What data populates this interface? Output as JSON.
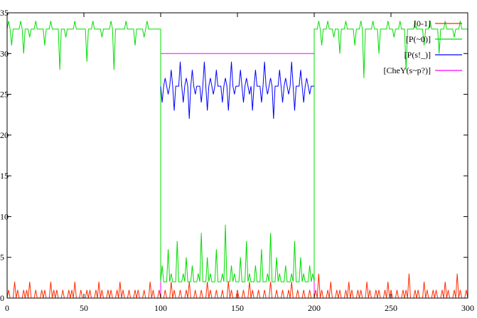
{
  "chart_data": {
    "type": "line",
    "xlim": [
      0,
      300
    ],
    "ylim": [
      0,
      35
    ],
    "x_ticks": [
      0,
      50,
      100,
      150,
      200,
      250,
      300
    ],
    "y_ticks": [
      0,
      5,
      10,
      15,
      20,
      25,
      30,
      35
    ],
    "grid": false,
    "legend_position": "top-right",
    "series": [
      {
        "name": "[0-1]",
        "color": "#ff2a00",
        "segments": [
          {
            "x0": 0,
            "x1": 100,
            "base": 0,
            "values": [
              1,
              0,
              2,
              1,
              0,
              1,
              1,
              2,
              0,
              1,
              0,
              1,
              1,
              0,
              2,
              1,
              1,
              0,
              1,
              0,
              1,
              1,
              2,
              0,
              1,
              0,
              1,
              1,
              0,
              1,
              2,
              1,
              0,
              1,
              1,
              0,
              1,
              2,
              1,
              0,
              1,
              0,
              1,
              1,
              0,
              1,
              0,
              2,
              1,
              0,
              1
            ]
          },
          {
            "x0": 100,
            "x1": 200,
            "base": 0,
            "values": [
              0,
              1,
              0,
              2,
              1,
              0,
              1,
              0,
              1,
              2,
              0,
              1,
              0,
              1,
              0,
              2,
              1,
              0,
              1,
              0,
              1,
              0,
              2,
              1,
              0,
              1,
              0,
              1,
              0,
              2,
              1,
              0,
              1,
              0,
              1,
              0,
              2,
              0,
              1,
              0,
              1,
              0,
              1,
              2,
              0,
              1,
              0,
              1,
              0,
              1,
              0
            ]
          },
          {
            "x0": 200,
            "x1": 300,
            "base": 0,
            "values": [
              1,
              3,
              1,
              0,
              1,
              2,
              0,
              1,
              1,
              0,
              1,
              2,
              1,
              0,
              1,
              1,
              0,
              2,
              1,
              0,
              1,
              1,
              0,
              1,
              2,
              1,
              0,
              1,
              0,
              1,
              1,
              3,
              0,
              1,
              1,
              0,
              2,
              1,
              0,
              1,
              1,
              0,
              1,
              2,
              1,
              0,
              1,
              3,
              1,
              0,
              1
            ]
          }
        ]
      },
      {
        "name": "[P(~0)]",
        "color": "#00dd00",
        "segments": [
          {
            "x0": 0,
            "x1": 100,
            "base": 33,
            "values": [
              34,
              31,
              33,
              33,
              34,
              30,
              33,
              32,
              33,
              34,
              33,
              33,
              31,
              33,
              34,
              33,
              33,
              28,
              33,
              32,
              33,
              33,
              34,
              33,
              33,
              33,
              29,
              33,
              34,
              33,
              33,
              32,
              33,
              33,
              34,
              28,
              33,
              33,
              33,
              34,
              33,
              33,
              31,
              33,
              33,
              32,
              34,
              33,
              33,
              33,
              33
            ]
          },
          {
            "x0": 100,
            "x1": 200,
            "base": 2,
            "values": [
              4,
              2,
              6,
              3,
              2,
              7,
              2,
              3,
              5,
              2,
              4,
              2,
              3,
              8,
              2,
              5,
              3,
              2,
              6,
              2,
              3,
              9,
              2,
              4,
              3,
              2,
              5,
              2,
              7,
              3,
              2,
              4,
              2,
              6,
              2,
              3,
              8,
              2,
              5,
              3,
              2,
              4,
              2,
              3,
              7,
              2,
              5,
              3,
              2,
              4,
              3
            ]
          },
          {
            "x0": 200,
            "x1": 300,
            "base": 33,
            "values": [
              33,
              34,
              31,
              33,
              34,
              33,
              32,
              33,
              30,
              33,
              34,
              33,
              33,
              31,
              33,
              34,
              27,
              33,
              33,
              34,
              33,
              30,
              33,
              33,
              34,
              33,
              32,
              33,
              34,
              33,
              28,
              33,
              33,
              34,
              33,
              33,
              31,
              33,
              34,
              33,
              33,
              30,
              33,
              34,
              33,
              33,
              32,
              33,
              34,
              33,
              33
            ]
          }
        ]
      },
      {
        "name": "[P(s!_)]",
        "color": "#0000ff",
        "segments": [
          {
            "x0": 100,
            "x1": 200,
            "base": 26,
            "values": [
              24,
              27,
              25,
              28,
              23,
              26,
              29,
              24,
              27,
              22,
              28,
              25,
              26,
              24,
              29,
              23,
              27,
              25,
              28,
              26,
              24,
              27,
              23,
              29,
              25,
              26,
              28,
              24,
              27,
              25,
              23,
              28,
              26,
              24,
              29,
              25,
              27,
              22,
              26,
              28,
              24,
              27,
              25,
              29,
              23,
              26,
              28,
              24,
              27,
              25,
              26
            ]
          }
        ]
      },
      {
        "name": "[CheY(s~p?)]",
        "color": "#ff00ff",
        "step": [
          [
            0,
            0
          ],
          [
            100,
            0
          ],
          [
            100,
            30
          ],
          [
            200,
            30
          ],
          [
            200,
            0
          ],
          [
            300,
            0
          ]
        ]
      }
    ]
  }
}
